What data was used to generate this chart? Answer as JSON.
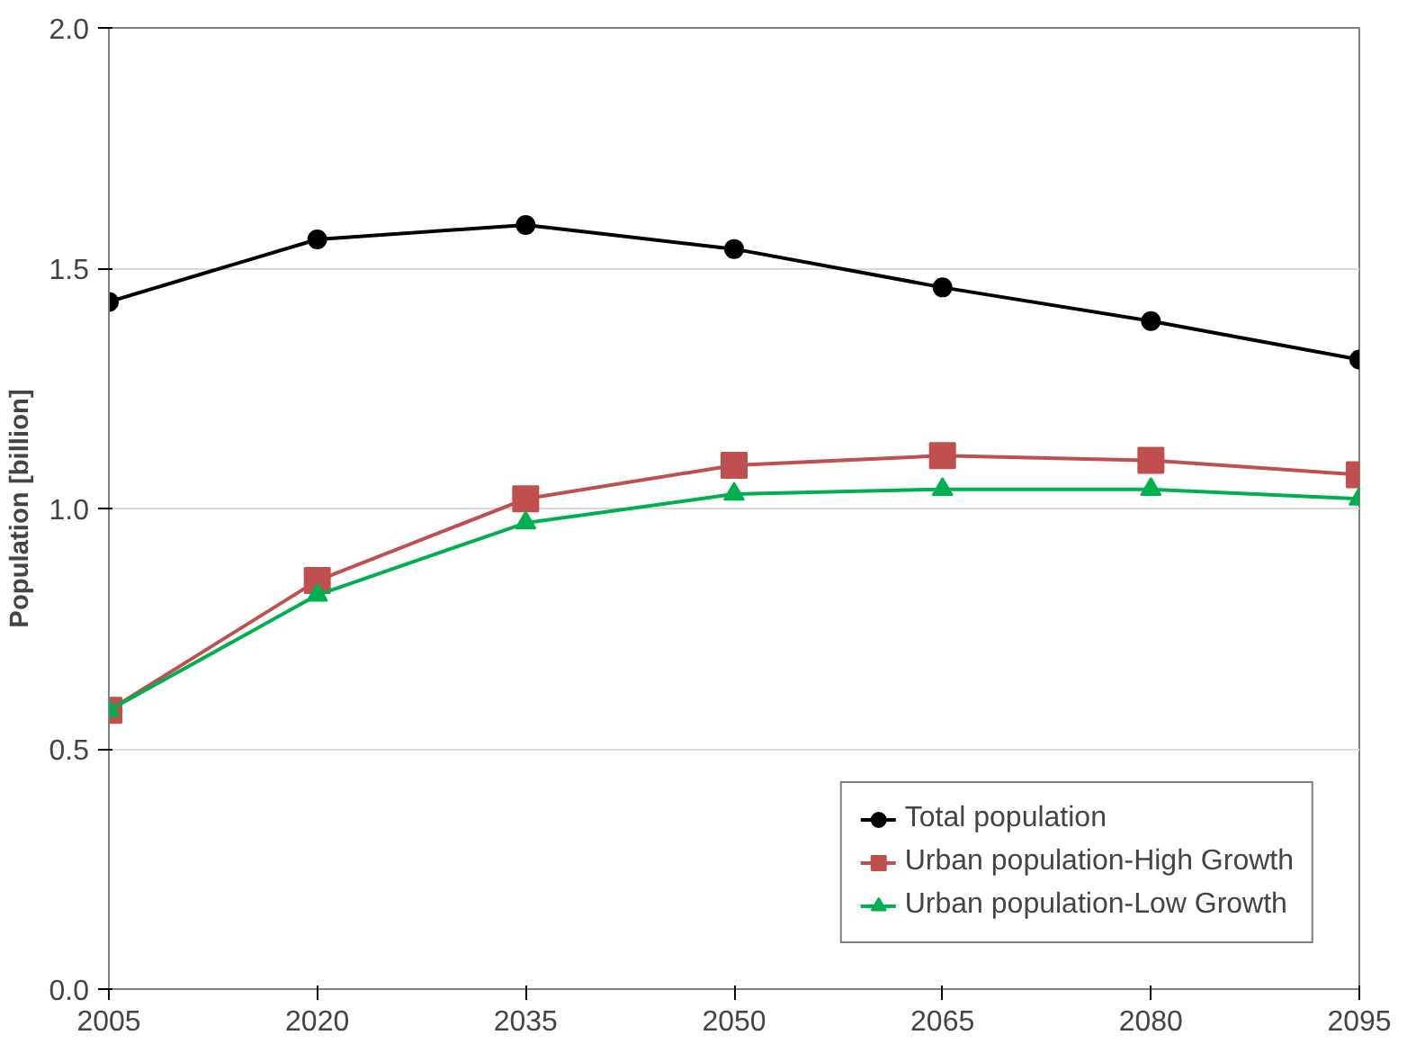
{
  "chart_data": {
    "type": "line",
    "ylabel": "Population [billion]",
    "x": [
      2005,
      2020,
      2035,
      2050,
      2065,
      2080,
      2095
    ],
    "xlim": [
      2005,
      2095
    ],
    "xticks": [
      2005,
      2020,
      2035,
      2050,
      2065,
      2080,
      2095
    ],
    "ylim": [
      0,
      2
    ],
    "yticks": [
      {
        "value": 0,
        "label": "0.0"
      },
      {
        "value": 0.5,
        "label": "0.5"
      },
      {
        "value": 1,
        "label": "1.0"
      },
      {
        "value": 1.5,
        "label": "1.5"
      },
      {
        "value": 2,
        "label": "2.0"
      }
    ],
    "grid": "y",
    "legend": "bottom right",
    "series": [
      {
        "name": "Total population",
        "color": "#000000",
        "marker": "circle",
        "values": [
          1.43,
          1.56,
          1.59,
          1.54,
          1.46,
          1.39,
          1.31
        ]
      },
      {
        "name": "Urban population-High Growth",
        "color": "#c0504d",
        "marker": "square",
        "values": [
          0.58,
          0.85,
          1.02,
          1.09,
          1.11,
          1.1,
          1.07
        ]
      },
      {
        "name": "Urban population-Low Growth",
        "color": "#00b050",
        "marker": "triangle",
        "values": [
          0.58,
          0.82,
          0.97,
          1.03,
          1.04,
          1.04,
          1.02
        ]
      }
    ]
  }
}
